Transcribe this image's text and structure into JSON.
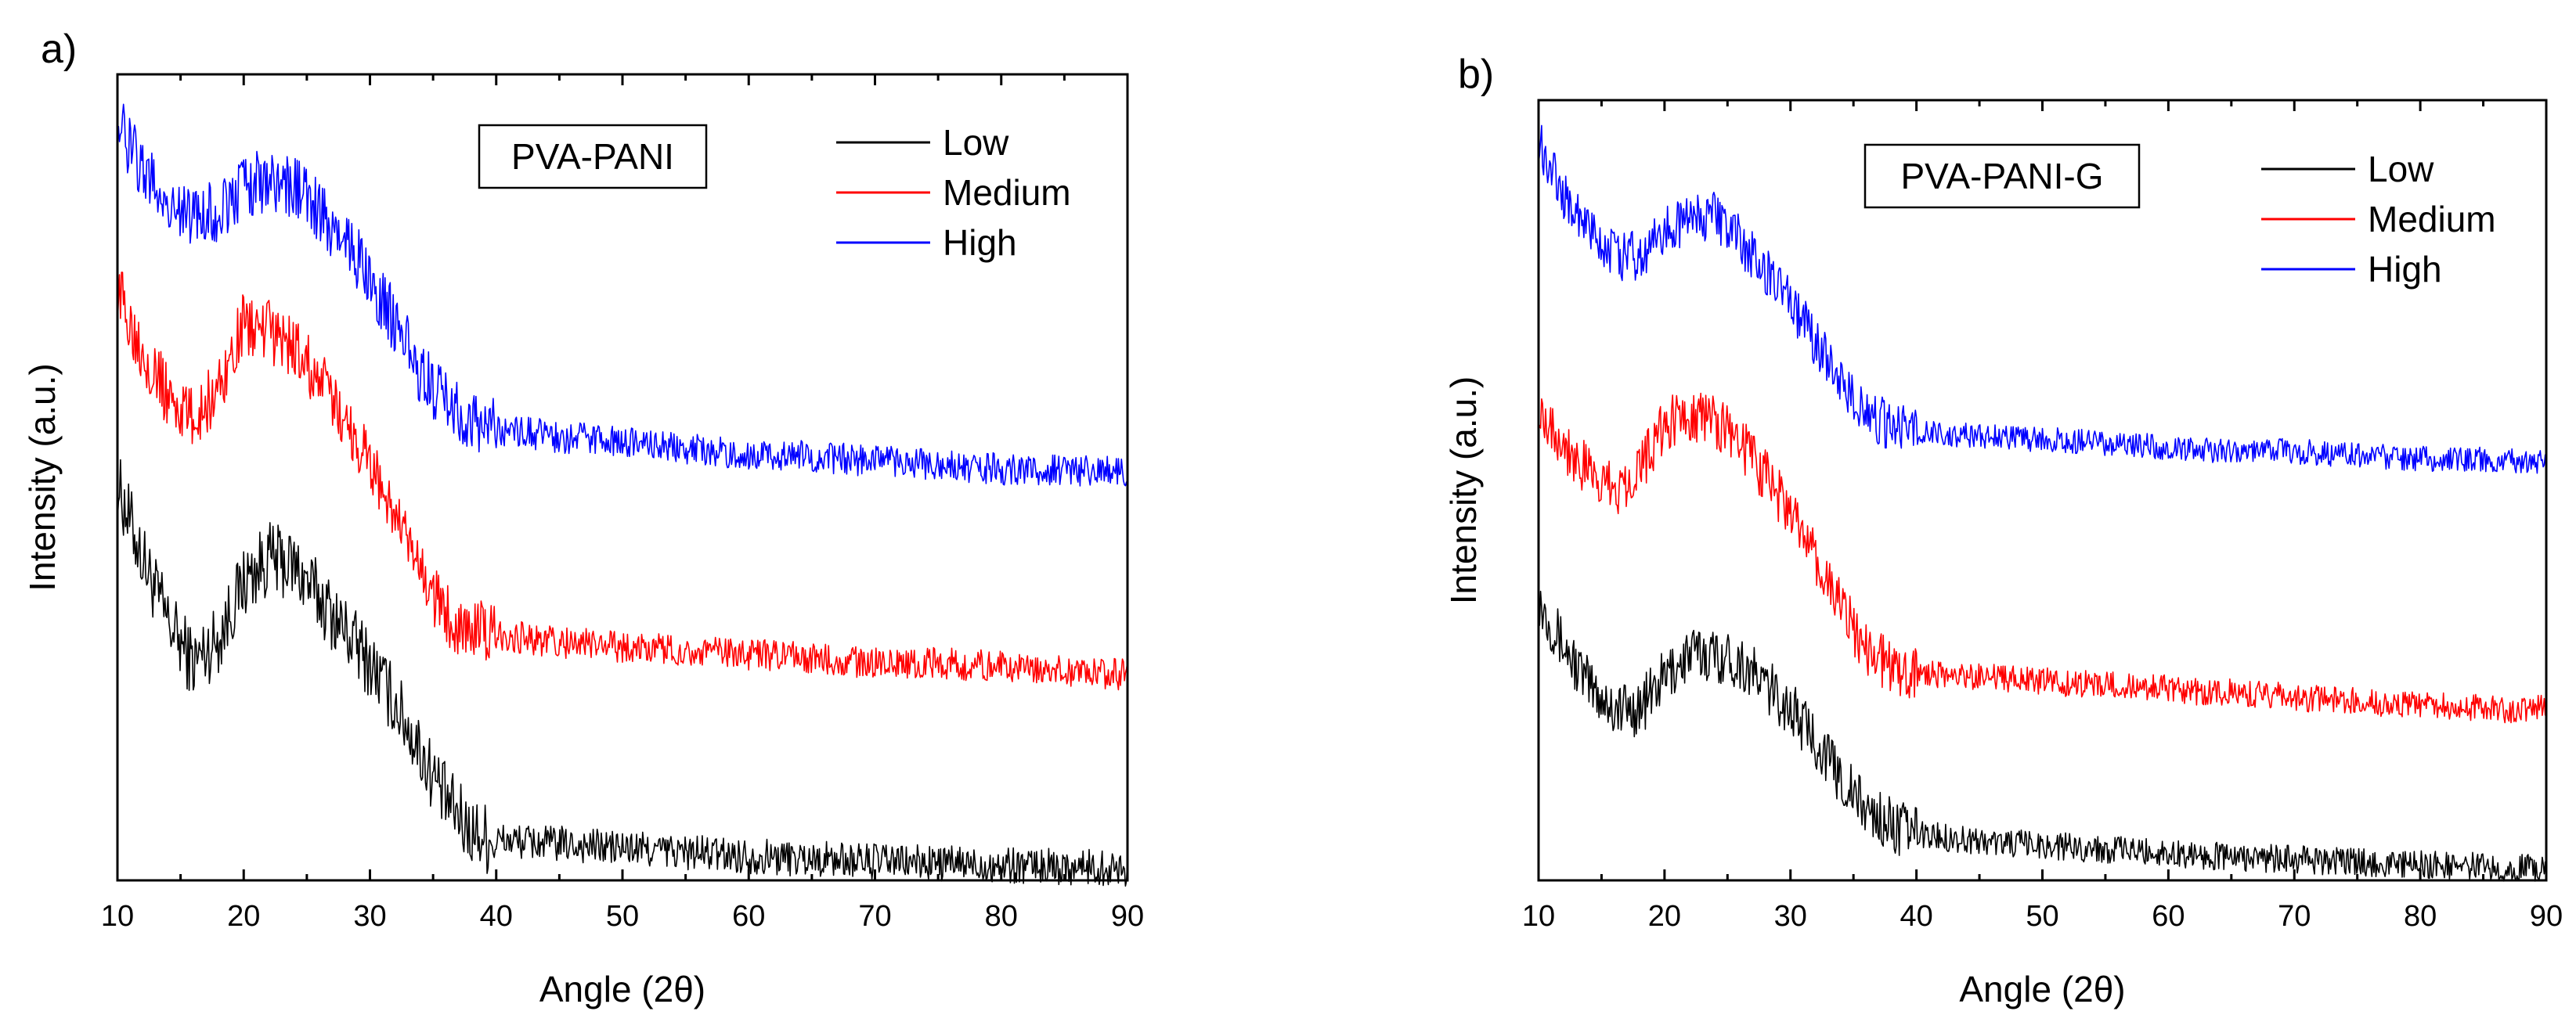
{
  "charts": [
    {
      "panel_label": "a)",
      "sample_label": "PVA-PANI",
      "xlabel": "Angle (2θ)",
      "ylabel": "Intensity (a.u.)",
      "legend": [
        {
          "name": "Low",
          "color": "#000000"
        },
        {
          "name": "Medium",
          "color": "#ff0000"
        },
        {
          "name": "High",
          "color": "#0000ff"
        }
      ],
      "x_ticks": [
        "10",
        "20",
        "30",
        "40",
        "50",
        "60",
        "70",
        "80",
        "90"
      ]
    },
    {
      "panel_label": "b)",
      "sample_label": "PVA-PANI-G",
      "xlabel": "Angle (2θ)",
      "ylabel": "Intensity (a.u.)",
      "legend": [
        {
          "name": "Low",
          "color": "#000000"
        },
        {
          "name": "Medium",
          "color": "#ff0000"
        },
        {
          "name": "High",
          "color": "#0000ff"
        }
      ],
      "x_ticks": [
        "10",
        "20",
        "30",
        "40",
        "50",
        "60",
        "70",
        "80",
        "90"
      ]
    }
  ],
  "chart_data": [
    {
      "type": "line",
      "xlabel": "Angle (2θ)",
      "ylabel": "Intensity (a.u.)",
      "xlim": [
        10,
        90
      ],
      "ylim": [
        0,
        1
      ],
      "grid": false,
      "legend_placement": "top-right",
      "series": [
        {
          "name": "Low",
          "color": "#000000",
          "noise": 0.025,
          "x": [
            10,
            12,
            14,
            16,
            18,
            20,
            22,
            24,
            26,
            28,
            30,
            32,
            34,
            36,
            38,
            40,
            45,
            50,
            55,
            60,
            65,
            70,
            75,
            80,
            85,
            90
          ],
          "y": [
            0.49,
            0.4,
            0.32,
            0.27,
            0.3,
            0.37,
            0.4,
            0.39,
            0.35,
            0.31,
            0.27,
            0.22,
            0.16,
            0.1,
            0.06,
            0.05,
            0.045,
            0.04,
            0.035,
            0.03,
            0.027,
            0.024,
            0.021,
            0.019,
            0.017,
            0.015
          ]
        },
        {
          "name": "Medium",
          "color": "#ff0000",
          "noise": 0.022,
          "x": [
            10,
            12,
            14,
            16,
            18,
            20,
            22,
            24,
            26,
            28,
            30,
            32,
            34,
            36,
            38,
            40,
            45,
            50,
            55,
            60,
            65,
            70,
            75,
            80,
            85,
            90
          ],
          "y": [
            0.73,
            0.66,
            0.6,
            0.57,
            0.61,
            0.69,
            0.68,
            0.66,
            0.62,
            0.57,
            0.52,
            0.45,
            0.38,
            0.33,
            0.31,
            0.305,
            0.295,
            0.29,
            0.285,
            0.28,
            0.275,
            0.27,
            0.27,
            0.265,
            0.26,
            0.255
          ]
        },
        {
          "name": "High",
          "color": "#0000ff",
          "noise": 0.022,
          "x": [
            10,
            12,
            14,
            16,
            18,
            20,
            22,
            24,
            26,
            28,
            30,
            32,
            34,
            36,
            38,
            40,
            45,
            50,
            55,
            60,
            65,
            70,
            75,
            80,
            85,
            90
          ],
          "y": [
            0.94,
            0.88,
            0.84,
            0.82,
            0.83,
            0.86,
            0.87,
            0.86,
            0.83,
            0.79,
            0.75,
            0.69,
            0.63,
            0.59,
            0.57,
            0.56,
            0.55,
            0.545,
            0.535,
            0.53,
            0.525,
            0.52,
            0.515,
            0.51,
            0.51,
            0.505
          ]
        }
      ]
    },
    {
      "type": "line",
      "xlabel": "Angle (2θ)",
      "ylabel": "Intensity (a.u.)",
      "xlim": [
        10,
        90
      ],
      "ylim": [
        0,
        1
      ],
      "grid": false,
      "legend_placement": "top-right",
      "series": [
        {
          "name": "Low",
          "color": "#000000",
          "noise": 0.02,
          "x": [
            10,
            12,
            14,
            16,
            18,
            20,
            22,
            24,
            26,
            28,
            30,
            32,
            34,
            36,
            38,
            40,
            45,
            50,
            55,
            60,
            65,
            70,
            75,
            80,
            85,
            90
          ],
          "y": [
            0.36,
            0.3,
            0.25,
            0.22,
            0.22,
            0.26,
            0.29,
            0.29,
            0.28,
            0.25,
            0.22,
            0.18,
            0.13,
            0.09,
            0.07,
            0.06,
            0.05,
            0.045,
            0.04,
            0.035,
            0.03,
            0.027,
            0.023,
            0.02,
            0.018,
            0.015
          ]
        },
        {
          "name": "Medium",
          "color": "#ff0000",
          "noise": 0.02,
          "x": [
            10,
            12,
            14,
            16,
            18,
            20,
            22,
            24,
            26,
            28,
            30,
            32,
            34,
            36,
            38,
            40,
            45,
            50,
            55,
            60,
            65,
            70,
            75,
            80,
            85,
            90
          ],
          "y": [
            0.61,
            0.56,
            0.52,
            0.5,
            0.53,
            0.58,
            0.6,
            0.59,
            0.56,
            0.52,
            0.47,
            0.41,
            0.35,
            0.3,
            0.27,
            0.265,
            0.26,
            0.255,
            0.25,
            0.245,
            0.24,
            0.235,
            0.23,
            0.225,
            0.22,
            0.22
          ]
        },
        {
          "name": "High",
          "color": "#0000ff",
          "noise": 0.018,
          "x": [
            10,
            12,
            14,
            16,
            18,
            20,
            22,
            24,
            26,
            28,
            30,
            32,
            34,
            36,
            38,
            40,
            45,
            50,
            55,
            60,
            65,
            70,
            75,
            80,
            85,
            90
          ],
          "y": [
            0.95,
            0.88,
            0.83,
            0.8,
            0.8,
            0.83,
            0.85,
            0.85,
            0.82,
            0.78,
            0.74,
            0.69,
            0.64,
            0.6,
            0.58,
            0.575,
            0.57,
            0.565,
            0.56,
            0.555,
            0.55,
            0.55,
            0.545,
            0.54,
            0.54,
            0.535
          ]
        }
      ]
    }
  ]
}
